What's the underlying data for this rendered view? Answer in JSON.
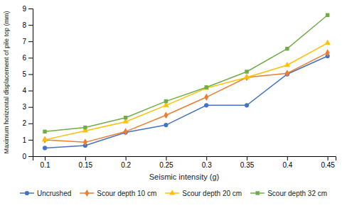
{
  "chart_data": {
    "type": "line",
    "xlabel": "Seismic intensity (g)",
    "ylabel": "Maximum horizontal displacement of pile top (mm)",
    "x": [
      0.1,
      0.15,
      0.2,
      0.25,
      0.3,
      0.35,
      0.4,
      0.45
    ],
    "series": [
      {
        "name": "Uncrushed",
        "color": "#4472C4",
        "marker": "circle",
        "values": [
          0.5,
          0.65,
          1.45,
          1.9,
          3.1,
          3.1,
          5.0,
          6.1
        ]
      },
      {
        "name": "Scour depth 10 cm",
        "color": "#ED7D31",
        "marker": "diamond",
        "values": [
          1.0,
          0.85,
          1.5,
          2.5,
          3.6,
          4.8,
          5.05,
          6.3
        ]
      },
      {
        "name": "Scour depth 20 cm",
        "color": "#FFC000",
        "marker": "triangle",
        "values": [
          1.0,
          1.55,
          2.1,
          3.1,
          4.15,
          4.8,
          5.55,
          6.9
        ]
      },
      {
        "name": "Scour depth 32 cm",
        "color": "#70AD47",
        "marker": "square",
        "values": [
          1.5,
          1.75,
          2.35,
          3.35,
          4.2,
          5.15,
          6.55,
          8.6
        ]
      }
    ],
    "xlim": [
      0.085,
      0.46
    ],
    "xticks": [
      0.1,
      0.15,
      0.2,
      0.25,
      0.3,
      0.35,
      0.4,
      0.45
    ],
    "ylim": [
      0,
      9
    ],
    "yticks": [
      0,
      1,
      2,
      3,
      4,
      5,
      6,
      7,
      8,
      9
    ],
    "grid": false,
    "legend": "bottom"
  }
}
